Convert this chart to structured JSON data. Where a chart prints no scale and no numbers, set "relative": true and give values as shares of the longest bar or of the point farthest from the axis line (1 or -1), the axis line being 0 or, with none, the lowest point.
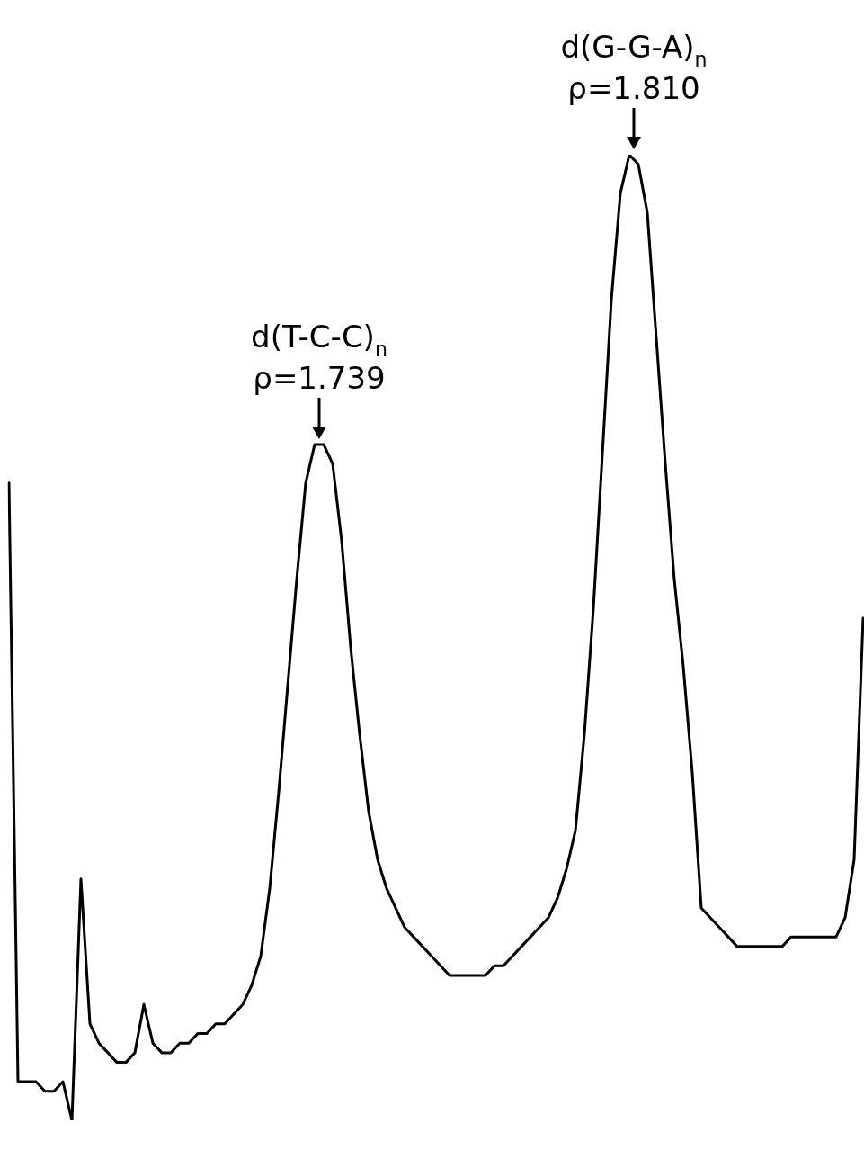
{
  "chart_data": {
    "type": "line",
    "relative": true,
    "marker": "none",
    "color": "#000000",
    "categories": [
      null,
      null,
      null,
      null,
      null,
      null,
      null,
      null,
      null,
      null,
      null,
      null,
      null,
      null,
      null,
      null,
      null,
      null,
      null,
      null,
      null,
      null,
      null,
      null,
      null,
      null,
      null,
      null,
      null,
      null,
      null,
      null,
      null,
      null,
      null,
      null,
      null,
      null,
      null,
      null,
      null,
      null,
      null,
      null,
      null,
      null,
      null,
      null,
      null,
      null,
      null,
      null,
      null,
      null,
      null,
      null,
      null,
      null,
      null,
      null,
      null,
      null,
      null,
      null,
      null,
      null,
      null,
      null,
      null,
      null,
      null,
      null,
      null,
      null,
      null,
      null,
      null,
      null,
      null,
      null,
      null,
      null,
      null,
      null,
      null,
      null,
      null,
      null,
      null,
      null,
      null,
      null,
      null,
      null,
      null,
      null
    ],
    "values": [
      0.66,
      0.04,
      0.04,
      0.04,
      0.03,
      0.03,
      0.04,
      0,
      0.25,
      0.1,
      0.08,
      0.07,
      0.06,
      0.06,
      0.07,
      0.12,
      0.08,
      0.07,
      0.07,
      0.08,
      0.08,
      0.09,
      0.09,
      0.1,
      0.1,
      0.11,
      0.12,
      0.14,
      0.17,
      0.24,
      0.34,
      0.45,
      0.56,
      0.66,
      0.7,
      0.7,
      0.68,
      0.6,
      0.49,
      0.4,
      0.32,
      0.27,
      0.24,
      0.22,
      0.2,
      0.19,
      0.18,
      0.17,
      0.16,
      0.15,
      0.15,
      0.15,
      0.15,
      0.15,
      0.16,
      0.16,
      0.17,
      0.18,
      0.19,
      0.2,
      0.21,
      0.23,
      0.26,
      0.3,
      0.4,
      0.53,
      0.69,
      0.85,
      0.96,
      1,
      0.99,
      0.94,
      0.81,
      0.68,
      0.56,
      0.47,
      0.36,
      0.22,
      0.21,
      0.2,
      0.19,
      0.18,
      0.18,
      0.18,
      0.18,
      0.18,
      0.18,
      0.19,
      0.19,
      0.19,
      0.19,
      0.19,
      0.19,
      0.21,
      0.27,
      0.52
    ],
    "annotations": [
      {
        "text": "d(T-C-C)$_{n}$\nρ=1.739",
        "y": 0.7
      },
      {
        "text": "d(G-G-A)$_{n}$\nρ=1.810",
        "y": 1
      }
    ]
  }
}
